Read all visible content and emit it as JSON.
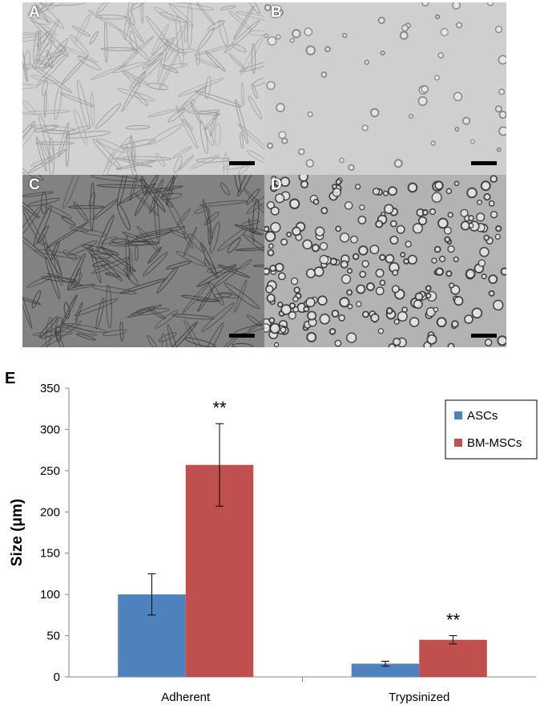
{
  "panels": [
    {
      "letter": "A",
      "kind": "spindle",
      "bg": "#d2d2d2",
      "cell": "#9a9a9a"
    },
    {
      "letter": "B",
      "kind": "round",
      "bg": "#cfd0ce",
      "cell": "#7c7c7c"
    },
    {
      "letter": "C",
      "kind": "spindle",
      "bg": "#828380",
      "cell": "#3c3d3b"
    },
    {
      "letter": "D",
      "kind": "round",
      "bg": "#b3b4b1",
      "cell": "#2f2f2f"
    }
  ],
  "chart_letter": "E",
  "chart_data": {
    "type": "bar",
    "categories": [
      "Adherent",
      "Trypsinized"
    ],
    "series": [
      {
        "name": "ASCs",
        "color": "#4f81bd",
        "values": [
          100,
          16
        ],
        "errors": [
          25,
          3
        ]
      },
      {
        "name": "BM-MSCs",
        "color": "#c0504d",
        "values": [
          257,
          45
        ],
        "errors": [
          50,
          5
        ]
      }
    ],
    "annotations": [
      "**",
      "**"
    ],
    "ylabel": "Size (μm)",
    "xlabel": "",
    "ylim": [
      0,
      350
    ],
    "yticks": [
      0,
      50,
      100,
      150,
      200,
      250,
      300,
      350
    ],
    "legend_position": "top-right"
  }
}
